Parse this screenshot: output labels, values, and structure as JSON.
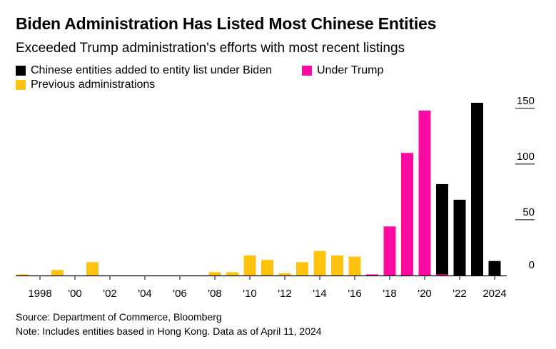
{
  "title": "Biden Administration Has Listed Most Chinese Entities",
  "subtitle": "Exceeded Trump administration's efforts with most recent listings",
  "legend": [
    {
      "label": "Chinese entities added to entity list under Biden",
      "color": "#000000"
    },
    {
      "label": "Under Trump",
      "color": "#ff0aa1"
    },
    {
      "label": "Previous administrations",
      "color": "#ffc20e"
    }
  ],
  "footer": {
    "source": "Source: Department of Commerce, Bloomberg",
    "note": "Note: Includes entities based in Hong Kong. Data as of April 11, 2024"
  },
  "chart_data": {
    "type": "bar",
    "title": "Biden Administration Has Listed Most Chinese Entities",
    "xlabel": "",
    "ylabel": "",
    "ylim": [
      0,
      150
    ],
    "yticks": [
      0,
      50,
      100,
      150
    ],
    "xtick_labels": [
      "1998",
      "'00",
      "'02",
      "'04",
      "'06",
      "'08",
      "'10",
      "'12",
      "'14",
      "'16",
      "'18",
      "'20",
      "'22",
      "2024"
    ],
    "categories": [
      "1997",
      "1998",
      "1999",
      "2000",
      "2001",
      "2002",
      "2003",
      "2004",
      "2005",
      "2006",
      "2007",
      "2008",
      "2009",
      "2010",
      "2011",
      "2012",
      "2013",
      "2014",
      "2015",
      "2016",
      "2017",
      "2018",
      "2019",
      "2020",
      "2021",
      "2022",
      "2023",
      "2024"
    ],
    "series": [
      {
        "name": "Previous administrations",
        "color": "#ffc20e",
        "values": [
          1,
          0,
          5,
          0,
          12,
          0,
          0,
          0,
          0,
          0,
          0,
          3,
          3,
          18,
          14,
          2,
          12,
          22,
          18,
          17,
          0,
          0,
          0,
          0,
          0,
          0,
          0,
          0
        ]
      },
      {
        "name": "Under Trump",
        "color": "#ff0aa1",
        "values": [
          0,
          0,
          0,
          0,
          0,
          0,
          0,
          0,
          0,
          0,
          0,
          0,
          0,
          0,
          0,
          0,
          0,
          0,
          0,
          0,
          1,
          44,
          110,
          148,
          1,
          0,
          0,
          0
        ]
      },
      {
        "name": "Chinese entities added to entity list under Biden",
        "color": "#000000",
        "values": [
          0,
          0,
          0,
          0,
          0,
          0,
          0,
          0,
          0,
          0,
          0,
          0,
          0,
          0,
          0,
          0,
          0,
          0,
          0,
          0,
          0,
          0,
          0,
          0,
          81,
          68,
          155,
          13
        ]
      }
    ]
  }
}
